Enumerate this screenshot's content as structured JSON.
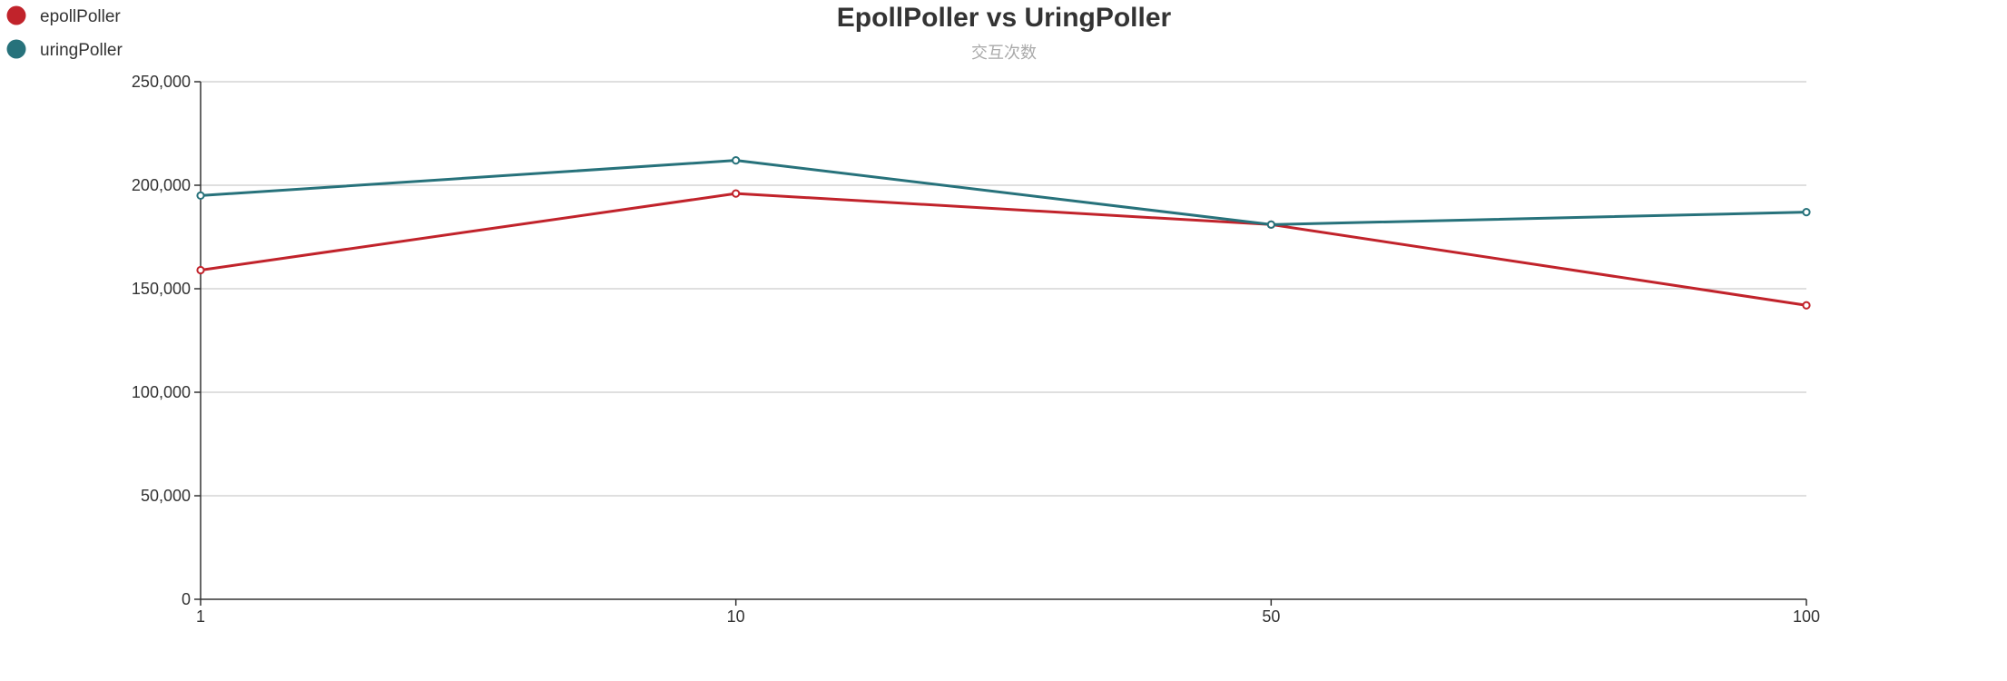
{
  "chart_data": {
    "type": "line",
    "title": "EpollPoller vs UringPoller",
    "subtitle": "交互次数",
    "xlabel": "",
    "ylabel": "",
    "categories": [
      "1",
      "10",
      "50",
      "100"
    ],
    "ylim": [
      0,
      250000
    ],
    "y_ticks": [
      0,
      50000,
      100000,
      150000,
      200000,
      250000
    ],
    "y_tick_labels": [
      "0",
      "50,000",
      "100,000",
      "150,000",
      "200,000",
      "250,000"
    ],
    "grid": true,
    "legend_position": "top-left",
    "series": [
      {
        "name": "epollPoller",
        "color": "#c1232b",
        "values": [
          159000,
          196000,
          181000,
          142000
        ]
      },
      {
        "name": "uringPoller",
        "color": "#27727b",
        "values": [
          195000,
          212000,
          181000,
          187000
        ]
      }
    ]
  }
}
